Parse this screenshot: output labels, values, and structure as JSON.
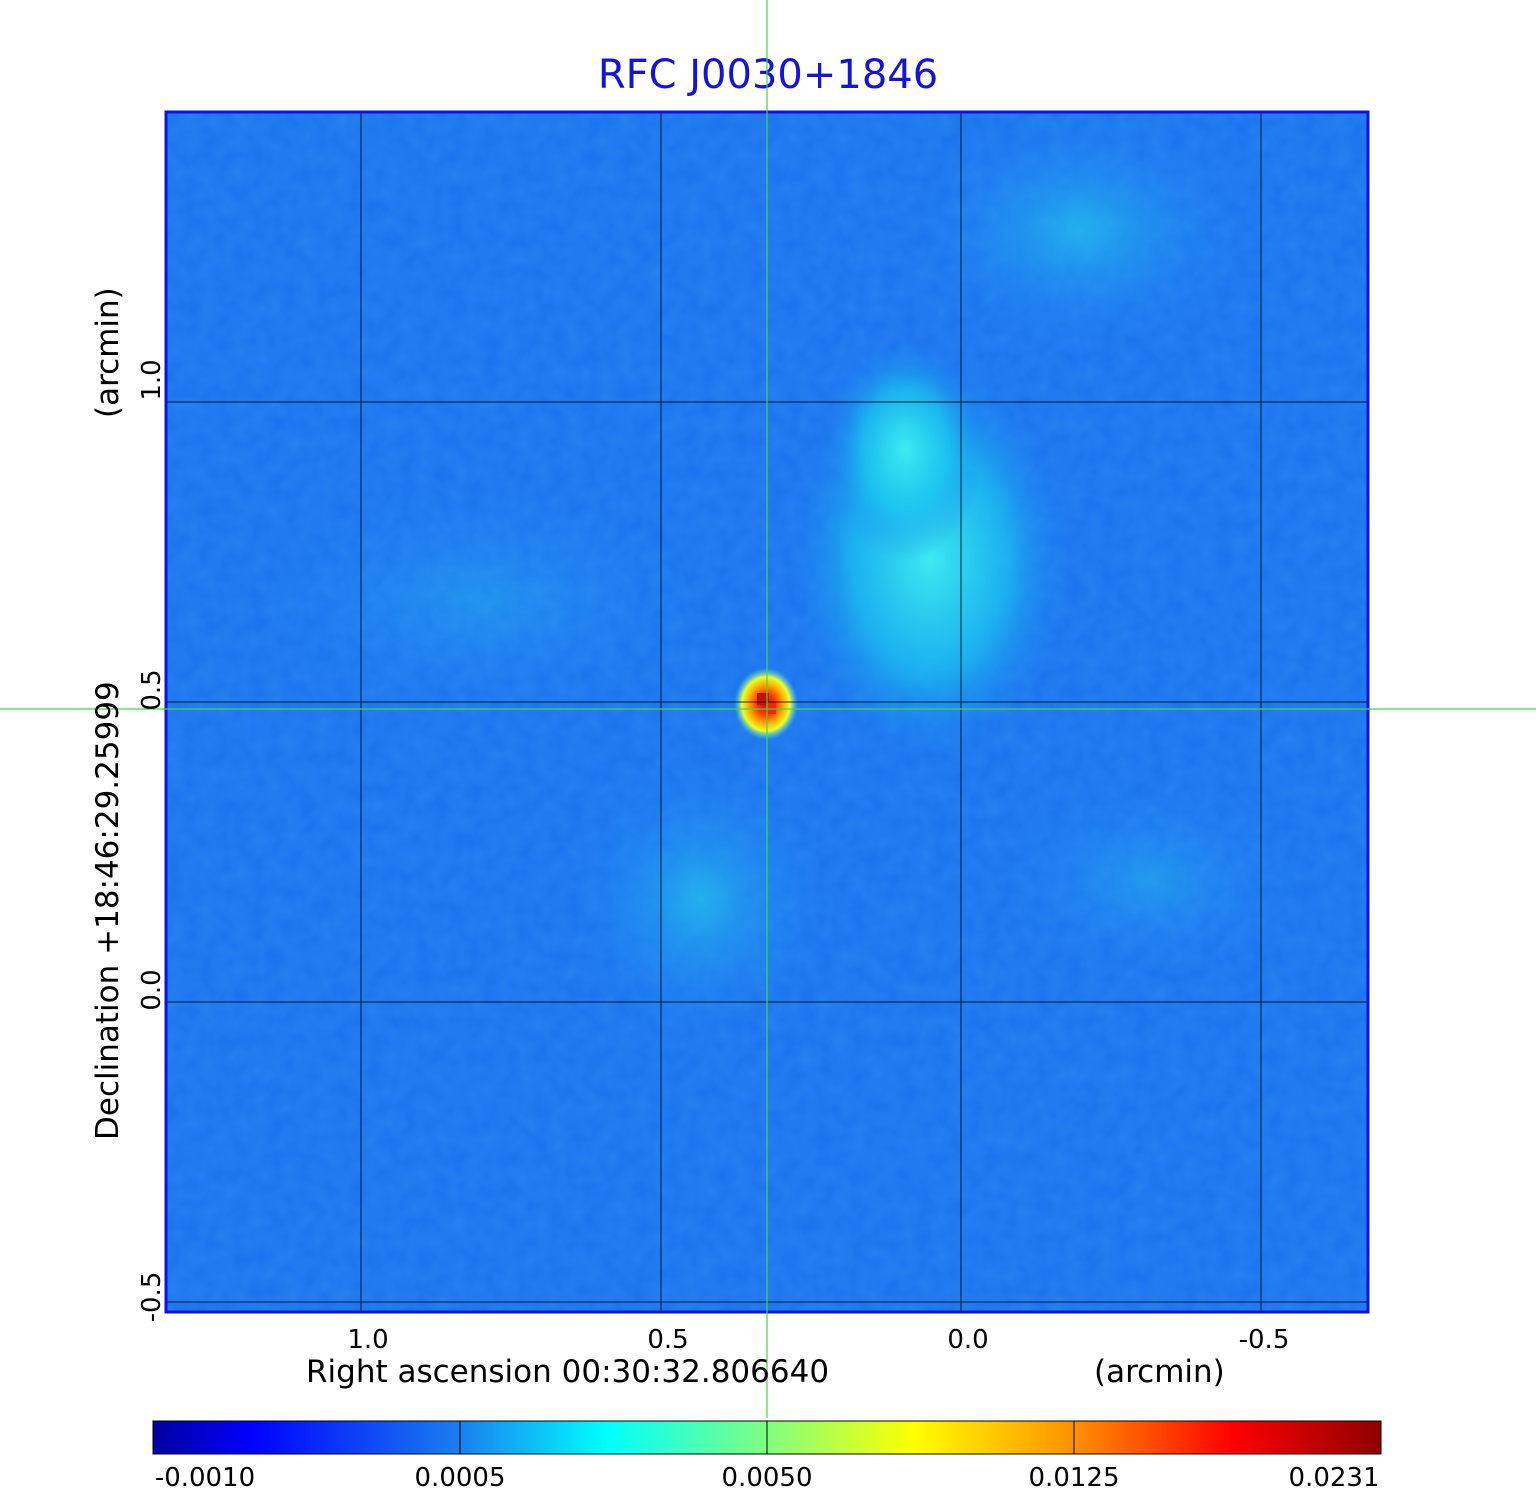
{
  "title": "RFC J0030+1846",
  "x_axis": {
    "label": "Right ascension  00:30:32.806640",
    "unit": "(arcmin)",
    "ticks": [
      "1.0",
      "0.5",
      "0.0",
      "-0.5"
    ]
  },
  "y_axis": {
    "label": "Declination  +18:46:29.25999",
    "unit": "(arcmin)",
    "ticks": [
      "1.0",
      "0.5",
      "0.0",
      "-0.5"
    ]
  },
  "colorbar": {
    "ticks": [
      "-0.0010",
      "0.0005",
      "0.0050",
      "0.0125",
      "0.0231"
    ],
    "colormap": "jet"
  },
  "colors": {
    "title": "#1414d8",
    "frame": "#1010e0",
    "crosshair": "#3ddc3d",
    "grid": "#000000"
  }
}
